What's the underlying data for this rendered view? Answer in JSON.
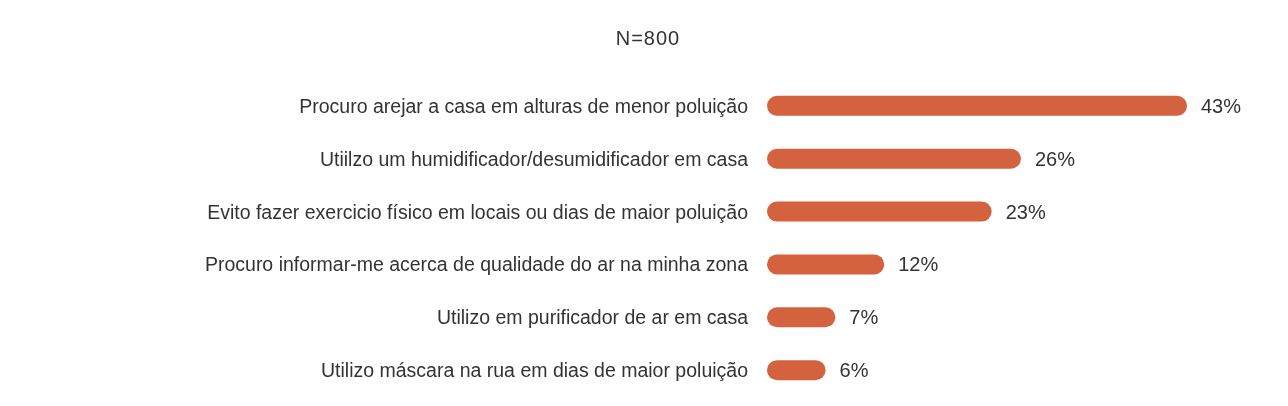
{
  "chart_data": {
    "type": "bar",
    "orientation": "horizontal",
    "title": "N=800",
    "categories": [
      "Procuro arejar a casa em alturas de menor poluição",
      "Utiilzo um humidificador/desumidificador em casa",
      "Evito fazer exercicio físico em locais ou dias de maior poluição",
      "Procuro informar-me acerca de qualidade do ar na minha zona",
      "Utilizo em purificador de ar em casa",
      "Utilizo máscara na rua em dias de maior poluição"
    ],
    "values": [
      43,
      26,
      23,
      12,
      7,
      6
    ],
    "value_labels": [
      "43%",
      "26%",
      "23%",
      "12%",
      "7%",
      "6%"
    ],
    "color": "#d4623f"
  }
}
